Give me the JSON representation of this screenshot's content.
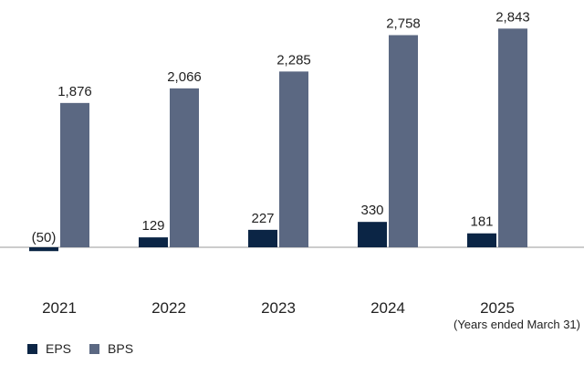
{
  "chart_data": {
    "type": "bar",
    "categories": [
      "2021",
      "2022",
      "2023",
      "2024",
      "2025"
    ],
    "series": [
      {
        "name": "EPS",
        "values": [
          -50,
          129,
          227,
          330,
          181
        ],
        "labels": [
          "(50)",
          "129",
          "227",
          "330",
          "181"
        ],
        "color": "#0b2545"
      },
      {
        "name": "BPS",
        "values": [
          1876,
          2066,
          2285,
          2758,
          2843
        ],
        "labels": [
          "1,876",
          "2,066",
          "2,285",
          "2,758",
          "2,843"
        ],
        "color": "#5b6882"
      }
    ],
    "note": "(Years ended March 31)",
    "title": "",
    "xlabel": "",
    "ylabel": "",
    "ylim": [
      -210,
      2843
    ],
    "grid": false,
    "legend_position": "bottom-left"
  }
}
